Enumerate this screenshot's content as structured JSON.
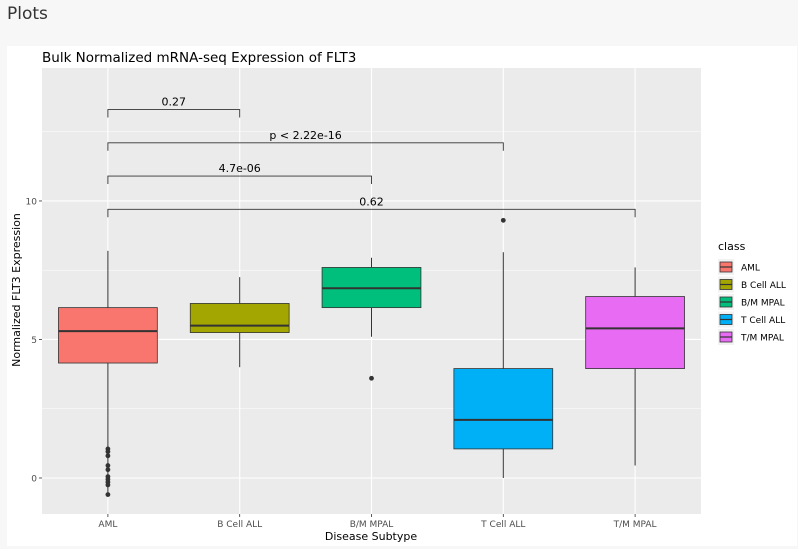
{
  "header": {
    "title": "Plots"
  },
  "chart_data": {
    "type": "boxplot",
    "title": "Bulk Normalized mRNA-seq Expression of FLT3",
    "xlabel": "Disease Subtype",
    "ylabel": "Normalized FLT3 Expression",
    "ylim": [
      -1.3,
      14.8
    ],
    "yticks": [
      0,
      5,
      10
    ],
    "grid": true,
    "legend": {
      "title": "class",
      "position": "right"
    },
    "categories": [
      "AML",
      "B Cell ALL",
      "B/M MPAL",
      "T Cell ALL",
      "T/M MPAL"
    ],
    "boxes": [
      {
        "name": "AML",
        "whisker_low": -0.6,
        "q1": 4.15,
        "median": 5.3,
        "q3": 6.15,
        "whisker_high": 8.2,
        "outliers": [
          1.05,
          0.95,
          0.8,
          0.45,
          0.3,
          0.05,
          -0.05,
          -0.15,
          -0.25,
          -0.6
        ],
        "color": "#F8766D"
      },
      {
        "name": "B Cell ALL",
        "whisker_low": 4.0,
        "q1": 5.25,
        "median": 5.5,
        "q3": 6.3,
        "whisker_high": 7.25,
        "outliers": [],
        "color": "#A3A500"
      },
      {
        "name": "B/M MPAL",
        "whisker_low": 5.1,
        "q1": 6.15,
        "median": 6.85,
        "q3": 7.6,
        "whisker_high": 7.95,
        "outliers": [
          3.6
        ],
        "color": "#00BF7D"
      },
      {
        "name": "T Cell ALL",
        "whisker_low": 0.0,
        "q1": 1.05,
        "median": 2.1,
        "q3": 3.95,
        "whisker_high": 8.15,
        "outliers": [
          9.3
        ],
        "color": "#00B0F6"
      },
      {
        "name": "T/M MPAL",
        "whisker_low": 0.45,
        "q1": 3.95,
        "median": 5.4,
        "q3": 6.55,
        "whisker_high": 7.6,
        "outliers": [],
        "color": "#E76BF3"
      }
    ],
    "comparisons": [
      {
        "from": "AML",
        "to": "B Cell ALL",
        "label": "0.27",
        "y": 13.3
      },
      {
        "from": "AML",
        "to": "T Cell ALL",
        "label": "p < 2.22e-16",
        "y": 12.1
      },
      {
        "from": "AML",
        "to": "B/M MPAL",
        "label": "4.7e-06",
        "y": 10.9
      },
      {
        "from": "AML",
        "to": "T/M MPAL",
        "label": "0.62",
        "y": 9.7
      }
    ]
  }
}
